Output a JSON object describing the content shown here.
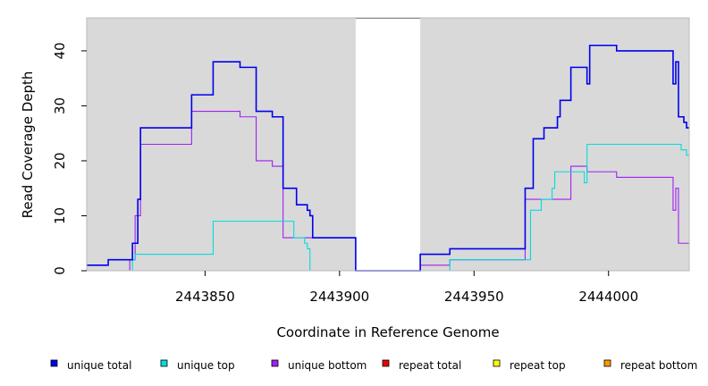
{
  "chart_data": {
    "type": "line",
    "title": "",
    "xlabel": "Coordinate in Reference Genome",
    "ylabel": "Read Coverage Depth",
    "xlim": [
      2443806,
      2444030
    ],
    "ylim": [
      0,
      46
    ],
    "x_ticks": [
      2443850,
      2443900,
      2443950,
      2444000
    ],
    "x_tick_labels": [
      "2443850",
      "2443900",
      "2443950",
      "2444000"
    ],
    "y_ticks": [
      0,
      10,
      20,
      30,
      40
    ],
    "y_tick_labels": [
      "0",
      "10",
      "20",
      "30",
      "40"
    ],
    "grid": false,
    "gap": [
      2443906,
      2443930
    ],
    "legend_position": "bottom",
    "series": [
      {
        "name": "unique total",
        "color": "#0000ee",
        "step": [
          [
            2443806,
            1
          ],
          [
            2443814,
            2
          ],
          [
            2443823,
            5
          ],
          [
            2443825,
            13
          ],
          [
            2443826,
            26
          ],
          [
            2443845,
            32
          ],
          [
            2443853,
            38
          ],
          [
            2443863,
            37
          ],
          [
            2443869,
            29
          ],
          [
            2443875,
            28
          ],
          [
            2443879,
            15
          ],
          [
            2443884,
            12
          ],
          [
            2443888,
            11
          ],
          [
            2443889,
            10
          ],
          [
            2443890,
            6
          ],
          [
            2443906,
            0
          ],
          [
            2443930,
            3
          ],
          [
            2443941,
            4
          ],
          [
            2443969,
            15
          ],
          [
            2443972,
            24
          ],
          [
            2443976,
            26
          ],
          [
            2443981,
            28
          ],
          [
            2443982,
            31
          ],
          [
            2443986,
            37
          ],
          [
            2443992,
            34
          ],
          [
            2443993,
            41
          ],
          [
            2444003,
            40
          ],
          [
            2444024,
            34
          ],
          [
            2444025,
            38
          ],
          [
            2444026,
            28
          ],
          [
            2444028,
            27
          ],
          [
            2444029,
            26
          ],
          [
            2444030,
            26
          ]
        ]
      },
      {
        "name": "unique top",
        "color": "#00dddd",
        "step": [
          [
            2443806,
            0
          ],
          [
            2443823,
            2
          ],
          [
            2443824,
            3
          ],
          [
            2443853,
            9
          ],
          [
            2443883,
            6
          ],
          [
            2443887,
            5
          ],
          [
            2443888,
            4
          ],
          [
            2443889,
            0
          ],
          [
            2443906,
            0
          ],
          [
            2443930,
            0
          ],
          [
            2443941,
            2
          ],
          [
            2443971,
            11
          ],
          [
            2443975,
            13
          ],
          [
            2443979,
            15
          ],
          [
            2443980,
            18
          ],
          [
            2443991,
            16
          ],
          [
            2443992,
            23
          ],
          [
            2444027,
            22
          ],
          [
            2444029,
            21
          ],
          [
            2444030,
            21
          ]
        ]
      },
      {
        "name": "unique bottom",
        "color": "#a020f0",
        "step": [
          [
            2443806,
            0
          ],
          [
            2443822,
            2
          ],
          [
            2443824,
            10
          ],
          [
            2443826,
            23
          ],
          [
            2443845,
            29
          ],
          [
            2443863,
            28
          ],
          [
            2443869,
            20
          ],
          [
            2443875,
            19
          ],
          [
            2443879,
            6
          ],
          [
            2443890,
            6
          ],
          [
            2443906,
            0
          ],
          [
            2443930,
            1
          ],
          [
            2443941,
            2
          ],
          [
            2443969,
            13
          ],
          [
            2443986,
            19
          ],
          [
            2443992,
            18
          ],
          [
            2444003,
            17
          ],
          [
            2444024,
            11
          ],
          [
            2444025,
            15
          ],
          [
            2444026,
            5
          ],
          [
            2444030,
            5
          ]
        ]
      },
      {
        "name": "repeat total",
        "color": "#ee0000",
        "step": [
          [
            2443806,
            0
          ],
          [
            2444030,
            0
          ]
        ]
      },
      {
        "name": "repeat top",
        "color": "#ffff00",
        "step": [
          [
            2443806,
            0
          ],
          [
            2444030,
            0
          ]
        ]
      },
      {
        "name": "repeat bottom",
        "color": "#ff9900",
        "step": [
          [
            2443806,
            0
          ],
          [
            2444030,
            0
          ]
        ]
      }
    ]
  },
  "style": {
    "plot_background": "#d9d9d9",
    "gap_background": "#ffffff"
  }
}
